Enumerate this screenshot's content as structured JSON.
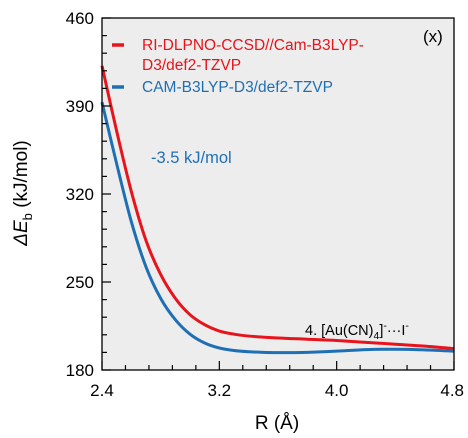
{
  "chart_data": {
    "type": "line",
    "panel_label": "(x)",
    "xlabel": "R (Å)",
    "ylabel_main": "ΔE",
    "ylabel_sub": "b",
    "ylabel_unit": " (kJ/mol)",
    "xlim": [
      2.4,
      4.8
    ],
    "ylim": [
      180,
      460
    ],
    "xticks": [
      2.4,
      3.2,
      4.0,
      4.8
    ],
    "yticks": [
      180,
      250,
      320,
      390,
      460
    ],
    "grid": false,
    "background": "#ededed",
    "legend_position": "top-left",
    "annotation": "-3.5 kJ/mol",
    "annotation_color": "#1f6fb4",
    "system_label_prefix": "4. [Au(CN)",
    "system_label_sub": "4",
    "system_label_mid": "]",
    "system_label_sup1": "-",
    "system_label_dots": "···I",
    "system_label_sup2": "-",
    "series": [
      {
        "name_lines": [
          "RI-DLPNO-CCSD//Cam-B3LYP-",
          "D3/def2-TZVP"
        ],
        "color": "#e8141c",
        "x": [
          2.4,
          2.5,
          2.6,
          2.7,
          2.8,
          2.9,
          3.0,
          3.1,
          3.2,
          3.3,
          3.4,
          3.6,
          3.8,
          4.0,
          4.2,
          4.4,
          4.6,
          4.8
        ],
        "y": [
          422,
          370,
          322,
          283,
          256,
          237,
          224,
          216,
          211,
          208.5,
          207,
          205.5,
          204.5,
          203.5,
          202,
          200.5,
          199,
          197
        ]
      },
      {
        "name_lines": [
          "CAM-B3LYP-D3/def2-TZVP"
        ],
        "color": "#1f6fb4",
        "x": [
          2.4,
          2.5,
          2.6,
          2.7,
          2.8,
          2.9,
          3.0,
          3.1,
          3.2,
          3.3,
          3.4,
          3.5,
          3.6,
          3.7,
          3.8,
          4.0,
          4.2,
          4.4,
          4.6,
          4.8
        ],
        "y": [
          393,
          344,
          298,
          262,
          237,
          220,
          208.5,
          201.5,
          197.5,
          195.5,
          194.5,
          194,
          193.8,
          193.8,
          194,
          195,
          196.2,
          196.5,
          196,
          195
        ]
      }
    ]
  }
}
